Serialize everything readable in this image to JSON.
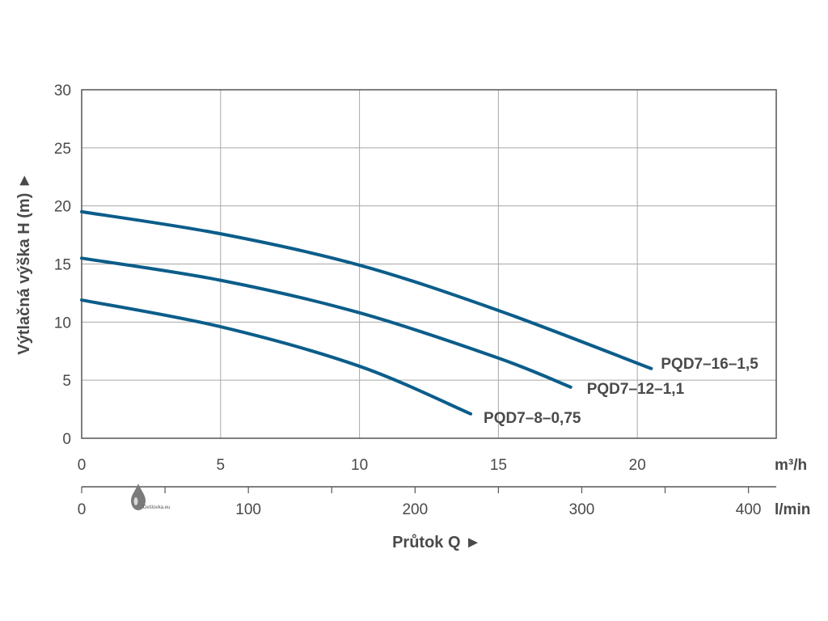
{
  "chart_data": {
    "type": "line",
    "ylabel": "Výtlačná výška H (m) ►",
    "xlabel": "Průtok Q ►",
    "x_unit": "m³/h",
    "x2_unit": "l/min",
    "xlim": [
      0,
      25
    ],
    "ylim": [
      0,
      30
    ],
    "x_ticks": [
      "0",
      "5",
      "10",
      "15",
      "20"
    ],
    "y_ticks": [
      "0",
      "5",
      "10",
      "15",
      "20",
      "25",
      "30"
    ],
    "x2_ticks": [
      "0",
      "100",
      "200",
      "300",
      "400"
    ],
    "x2_values": [
      0,
      100,
      200,
      300,
      400
    ],
    "x2_factor_m3h_to_lmin": 16.6667,
    "grid": true,
    "series": [
      {
        "name": "PQD7–16–1,5",
        "x": [
          0,
          5,
          10,
          15,
          20.5
        ],
        "y": [
          19.5,
          17.6,
          14.9,
          11.0,
          6.0
        ]
      },
      {
        "name": "PQD7–12–1,1",
        "x": [
          0,
          5,
          10,
          15,
          17.6
        ],
        "y": [
          15.5,
          13.6,
          10.8,
          6.9,
          4.4
        ]
      },
      {
        "name": "PQD7–8–0,75",
        "x": [
          0,
          5,
          10,
          14.0
        ],
        "y": [
          11.9,
          9.6,
          6.2,
          2.1
        ]
      }
    ]
  },
  "watermark": {
    "text": "Deštovka.eu",
    "icon": "water-drop-icon"
  },
  "colors": {
    "line": "#0b5d8a",
    "grid": "#a8a8a8",
    "axis": "#555555",
    "text": "#4a4a4a"
  }
}
